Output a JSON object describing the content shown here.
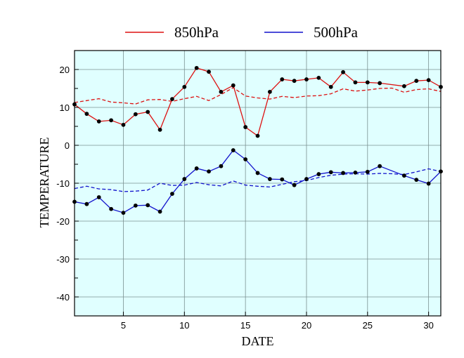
{
  "chart_data": {
    "type": "line",
    "xlabel": "DATE",
    "ylabel": "TEMPERATURE",
    "xlim": [
      1,
      31
    ],
    "ylim": [
      -45,
      25
    ],
    "xticks": [
      5,
      10,
      15,
      20,
      25,
      30
    ],
    "yticks": [
      20,
      10,
      0,
      -10,
      -20,
      -30,
      -40
    ],
    "grid": true,
    "legend_position": "top",
    "background": "#e0ffff",
    "series": [
      {
        "name": "850hPa",
        "color": "#dd1111",
        "style": "solid",
        "markers": true,
        "points": [
          [
            1,
            10.8
          ],
          [
            2,
            8.3
          ],
          [
            3,
            6.3
          ],
          [
            4,
            6.6
          ],
          [
            5,
            5.4
          ],
          [
            6,
            8.2
          ],
          [
            7,
            8.8
          ],
          [
            8,
            4.1
          ],
          [
            9,
            12.2
          ],
          [
            10,
            15.4
          ],
          [
            11,
            20.4
          ],
          [
            12,
            19.4
          ],
          [
            13,
            14.1
          ],
          [
            14,
            15.8
          ],
          [
            15,
            4.8
          ],
          [
            16,
            2.5
          ],
          [
            17,
            14.1
          ],
          [
            18,
            17.4
          ],
          [
            19,
            17.0
          ],
          [
            20,
            17.4
          ],
          [
            21,
            17.8
          ],
          [
            22,
            15.4
          ],
          [
            23,
            19.3
          ],
          [
            24,
            16.6
          ],
          [
            25,
            16.6
          ],
          [
            26,
            16.4
          ],
          [
            28,
            15.6
          ],
          [
            29,
            17.0
          ],
          [
            30,
            17.2
          ],
          [
            31,
            15.4
          ]
        ]
      },
      {
        "name": "500hPa",
        "color": "#1111cc",
        "style": "solid",
        "markers": true,
        "points": [
          [
            1,
            -14.9
          ],
          [
            2,
            -15.5
          ],
          [
            3,
            -13.7
          ],
          [
            4,
            -16.8
          ],
          [
            5,
            -17.8
          ],
          [
            6,
            -15.9
          ],
          [
            7,
            -15.8
          ],
          [
            8,
            -17.5
          ],
          [
            9,
            -12.8
          ],
          [
            10,
            -8.9
          ],
          [
            11,
            -6.1
          ],
          [
            12,
            -6.9
          ],
          [
            13,
            -5.5
          ],
          [
            14,
            -1.3
          ],
          [
            15,
            -3.7
          ],
          [
            16,
            -7.3
          ],
          [
            17,
            -8.9
          ],
          [
            18,
            -9.0
          ],
          [
            19,
            -10.5
          ],
          [
            20,
            -8.9
          ],
          [
            21,
            -7.6
          ],
          [
            22,
            -7.1
          ],
          [
            23,
            -7.3
          ],
          [
            24,
            -7.2
          ],
          [
            25,
            -7.0
          ],
          [
            26,
            -5.5
          ],
          [
            28,
            -8.0
          ],
          [
            29,
            -9.1
          ],
          [
            30,
            -10.1
          ],
          [
            31,
            -6.9
          ]
        ]
      },
      {
        "color": "#dd1111",
        "style": "dashed",
        "markers": false,
        "points": [
          [
            1,
            11.3
          ],
          [
            2,
            11.8
          ],
          [
            3,
            12.3
          ],
          [
            4,
            11.4
          ],
          [
            5,
            11.2
          ],
          [
            6,
            10.9
          ],
          [
            7,
            12.0
          ],
          [
            8,
            12.1
          ],
          [
            9,
            11.6
          ],
          [
            10,
            12.3
          ],
          [
            11,
            12.9
          ],
          [
            12,
            11.8
          ],
          [
            13,
            13.4
          ],
          [
            14,
            15.2
          ],
          [
            15,
            13.0
          ],
          [
            16,
            12.5
          ],
          [
            17,
            12.2
          ],
          [
            18,
            12.9
          ],
          [
            19,
            12.6
          ],
          [
            20,
            13.0
          ],
          [
            21,
            13.1
          ],
          [
            22,
            13.6
          ],
          [
            23,
            14.9
          ],
          [
            24,
            14.3
          ],
          [
            25,
            14.6
          ],
          [
            26,
            15.0
          ],
          [
            27,
            15.1
          ],
          [
            28,
            14.0
          ],
          [
            29,
            14.7
          ],
          [
            30,
            14.9
          ],
          [
            31,
            14.2
          ]
        ]
      },
      {
        "color": "#1111cc",
        "style": "dashed",
        "markers": false,
        "points": [
          [
            1,
            -11.4
          ],
          [
            2,
            -10.8
          ],
          [
            3,
            -11.5
          ],
          [
            4,
            -11.7
          ],
          [
            5,
            -12.2
          ],
          [
            6,
            -12.1
          ],
          [
            7,
            -11.8
          ],
          [
            8,
            -10.0
          ],
          [
            9,
            -10.6
          ],
          [
            10,
            -10.5
          ],
          [
            11,
            -9.8
          ],
          [
            12,
            -10.4
          ],
          [
            13,
            -10.7
          ],
          [
            14,
            -9.4
          ],
          [
            15,
            -10.5
          ],
          [
            16,
            -10.8
          ],
          [
            17,
            -11.0
          ],
          [
            18,
            -10.3
          ],
          [
            19,
            -9.6
          ],
          [
            20,
            -9.3
          ],
          [
            21,
            -8.5
          ],
          [
            22,
            -7.9
          ],
          [
            23,
            -7.6
          ],
          [
            24,
            -7.5
          ],
          [
            25,
            -7.6
          ],
          [
            26,
            -7.4
          ],
          [
            27,
            -7.5
          ],
          [
            28,
            -7.7
          ],
          [
            29,
            -7.0
          ],
          [
            30,
            -6.2
          ],
          [
            31,
            -6.9
          ]
        ]
      }
    ]
  }
}
